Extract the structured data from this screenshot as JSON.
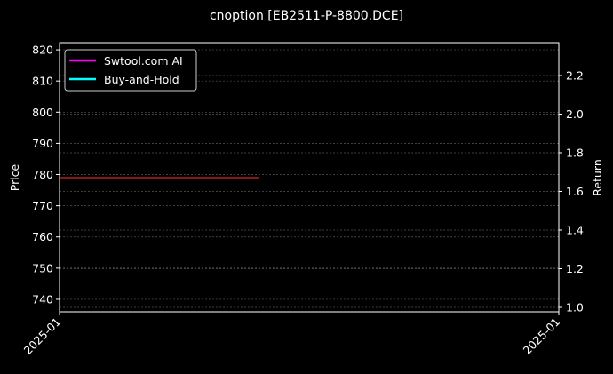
{
  "chart_data": {
    "type": "line",
    "title": "cnoption [EB2511-P-8800.DCE]",
    "ylabel": "Price",
    "y2label": "Return",
    "ylim": [
      736.0,
      822.3
    ],
    "y2lim": [
      0.977,
      2.37
    ],
    "yticks": [
      740,
      750,
      760,
      770,
      780,
      790,
      800,
      810,
      820
    ],
    "y2ticks": [
      "1.0",
      "1.2",
      "1.4",
      "1.6",
      "1.8",
      "2.0",
      "2.2"
    ],
    "xticks": [
      "2025-01",
      "2025-01"
    ],
    "xlim": [
      0,
      1
    ],
    "grid": true,
    "legend_placement": "top-left",
    "legend": [
      {
        "name": "Swtool.com AI",
        "color": "#ff00ff"
      },
      {
        "name": "Buy-and-Hold",
        "color": "#00ffff"
      }
    ],
    "price_line": {
      "color": "#d62728",
      "x": [
        0,
        0.4
      ],
      "y": [
        779,
        779
      ]
    }
  }
}
